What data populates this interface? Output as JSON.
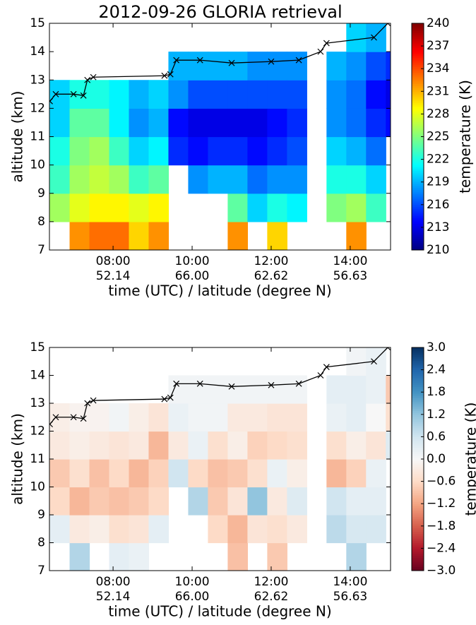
{
  "chart_data": [
    {
      "type": "heatmap",
      "title": "2012-09-26 GLORIA retrieval",
      "xlabel": "time (UTC) / latitude (degree N)",
      "ylabel": "altitude (km)",
      "colorbar_label": "temperature (K)",
      "colormap": "jet",
      "xlim": [
        6.39,
        15.02
      ],
      "ylim": [
        7,
        15
      ],
      "xticks": [
        {
          "value": 8,
          "label": "08:00",
          "label2": "52.14"
        },
        {
          "value": 10,
          "label": "10:00",
          "label2": "66.00"
        },
        {
          "value": 12,
          "label": "12:00",
          "label2": "62.62"
        },
        {
          "value": 14,
          "label": "14:00",
          "label2": "56.63"
        }
      ],
      "yticks": [
        7,
        8,
        9,
        10,
        11,
        12,
        13,
        14,
        15
      ],
      "clim": [
        210,
        240
      ],
      "cticks": [
        210,
        213,
        216,
        219,
        222,
        225,
        228,
        231,
        234,
        237,
        240
      ],
      "x_edges": [
        6.4,
        6.9,
        7.4,
        7.9,
        8.4,
        8.9,
        9.4,
        9.9,
        10.4,
        10.9,
        11.4,
        11.9,
        12.4,
        12.9,
        13.4,
        13.9,
        14.4,
        14.9,
        15.02
      ],
      "y_edges": [
        7,
        8,
        9,
        10,
        11,
        12,
        13,
        14,
        15
      ],
      "z": [
        [
          null,
          226,
          223,
          222,
          220,
          220,
          null,
          null
        ],
        [
          232,
          228,
          226,
          225,
          224,
          222,
          null,
          null
        ],
        [
          233,
          229,
          227,
          226,
          224,
          222,
          null,
          null
        ],
        [
          233,
          229,
          226,
          223,
          221,
          221,
          null,
          null
        ],
        [
          230,
          228,
          223,
          220,
          218,
          219,
          null,
          null
        ],
        [
          232,
          229,
          224,
          221,
          219,
          220,
          null,
          null
        ],
        [
          null,
          null,
          null,
          215,
          214,
          218,
          219,
          null
        ],
        [
          null,
          null,
          218,
          214,
          213,
          216,
          219,
          null
        ],
        [
          null,
          null,
          219,
          215,
          213,
          216,
          219,
          null
        ],
        [
          232,
          224,
          219,
          215,
          213,
          216,
          219,
          null
        ],
        [
          null,
          220,
          217,
          214,
          213,
          216,
          218,
          null
        ],
        [
          230,
          222,
          218,
          215,
          214,
          216,
          218,
          null
        ],
        [
          null,
          221,
          218,
          216,
          215,
          216,
          218,
          null
        ],
        [
          null,
          null,
          null,
          null,
          null,
          null,
          null,
          null
        ],
        [
          null,
          225,
          222,
          220,
          218,
          218,
          219,
          null
        ],
        [
          232,
          226,
          222,
          219,
          217,
          217,
          218,
          220
        ],
        [
          null,
          223,
          220,
          217,
          215,
          214,
          216,
          219
        ],
        [
          null,
          null,
          null,
          null,
          214,
          213,
          215,
          null
        ]
      ],
      "track": {
        "x": [
          6.4,
          6.55,
          7.0,
          7.25,
          7.35,
          7.5,
          9.3,
          9.45,
          9.6,
          10.2,
          11.0,
          12.0,
          12.7,
          13.25,
          13.4,
          14.6,
          14.95
        ],
        "y": [
          12.25,
          12.5,
          12.5,
          12.45,
          13.0,
          13.1,
          13.15,
          13.2,
          13.7,
          13.7,
          13.6,
          13.65,
          13.7,
          14.0,
          14.3,
          14.5,
          15.0
        ]
      }
    },
    {
      "type": "heatmap",
      "xlabel": "time (UTC) / latitude (degree N)",
      "ylabel": "altitude (km)",
      "colorbar_label": "temperature (K)",
      "colormap": "RdBu_r",
      "xlim": [
        6.39,
        15.02
      ],
      "ylim": [
        7,
        15
      ],
      "xticks": [
        {
          "value": 8,
          "label": "08:00",
          "label2": "52.14"
        },
        {
          "value": 10,
          "label": "10:00",
          "label2": "66.00"
        },
        {
          "value": 12,
          "label": "12:00",
          "label2": "62.62"
        },
        {
          "value": 14,
          "label": "14:00",
          "label2": "56.63"
        }
      ],
      "yticks": [
        7,
        8,
        9,
        10,
        11,
        12,
        13,
        14,
        15
      ],
      "clim": [
        -3,
        3
      ],
      "cticks": [
        {
          "value": -3,
          "label": "−3.0"
        },
        {
          "value": -2.4,
          "label": "−2.4"
        },
        {
          "value": -1.8,
          "label": "−1.8"
        },
        {
          "value": -1.2,
          "label": "−1.2"
        },
        {
          "value": -0.6,
          "label": "−0.6"
        },
        {
          "value": 0,
          "label": "0.0"
        },
        {
          "value": 0.6,
          "label": "0.6"
        },
        {
          "value": 1.2,
          "label": "1.2"
        },
        {
          "value": 1.8,
          "label": "1.8"
        },
        {
          "value": 2.4,
          "label": "2.4"
        },
        {
          "value": 3,
          "label": "3.0"
        }
      ],
      "x_edges": [
        6.4,
        6.9,
        7.4,
        7.9,
        8.4,
        8.9,
        9.4,
        9.9,
        10.4,
        10.9,
        11.4,
        11.9,
        12.4,
        12.9,
        13.4,
        13.9,
        14.4,
        14.9,
        15.02
      ],
      "y_edges": [
        7,
        8,
        9,
        10,
        11,
        12,
        13,
        14,
        15
      ],
      "z": [
        [
          null,
          0.3,
          -0.6,
          -0.8,
          -0.3,
          -0.2,
          null,
          null
        ],
        [
          0.9,
          -0.3,
          -1.0,
          -0.5,
          -0.2,
          -0.1,
          null,
          null
        ],
        [
          null,
          -0.2,
          -0.8,
          -0.9,
          -0.3,
          -0.1,
          null,
          null
        ],
        [
          0.3,
          -0.5,
          -0.9,
          -0.6,
          -0.4,
          0.1,
          null,
          null
        ],
        [
          0.2,
          -0.4,
          -0.8,
          -1.0,
          -0.3,
          -0.2,
          null,
          null
        ],
        [
          null,
          0.3,
          -0.6,
          -0.7,
          -1.0,
          -0.4,
          null,
          null
        ],
        [
          null,
          null,
          null,
          0.6,
          -0.3,
          0.2,
          0.1,
          null
        ],
        [
          null,
          null,
          0.9,
          -0.6,
          0.2,
          0.1,
          0.1,
          null
        ],
        [
          null,
          -0.6,
          -0.8,
          -0.9,
          -0.5,
          0.1,
          0.1,
          null
        ],
        [
          -0.9,
          -1.0,
          -0.4,
          -0.8,
          -0.2,
          -0.3,
          0.1,
          null
        ],
        [
          null,
          -0.4,
          1.2,
          -0.5,
          -0.7,
          -0.3,
          0.1,
          null
        ],
        [
          -0.8,
          -0.5,
          -0.3,
          0.2,
          -0.6,
          -0.4,
          0.1,
          null
        ],
        [
          null,
          -0.3,
          0.4,
          -0.2,
          -0.5,
          -0.4,
          0.1,
          null
        ],
        [
          null,
          null,
          null,
          null,
          null,
          null,
          null,
          null
        ],
        [
          null,
          0.8,
          0.6,
          -1.0,
          -0.5,
          0.2,
          0.3,
          null
        ],
        [
          0.9,
          0.5,
          0.3,
          -0.7,
          -0.2,
          0.3,
          0.3,
          0.1
        ],
        [
          null,
          0.5,
          0.3,
          0.2,
          -0.4,
          0.0,
          0.2,
          0.2
        ],
        [
          null,
          null,
          null,
          null,
          0.4,
          -0.5,
          -0.8,
          null
        ]
      ],
      "track": {
        "x": [
          6.4,
          6.55,
          7.0,
          7.25,
          7.35,
          7.5,
          9.3,
          9.45,
          9.6,
          10.2,
          11.0,
          12.0,
          12.7,
          13.25,
          13.4,
          14.6,
          14.95
        ],
        "y": [
          12.25,
          12.5,
          12.5,
          12.45,
          13.0,
          13.1,
          13.15,
          13.2,
          13.7,
          13.7,
          13.6,
          13.65,
          13.7,
          14.0,
          14.3,
          14.5,
          15.0
        ]
      }
    }
  ]
}
